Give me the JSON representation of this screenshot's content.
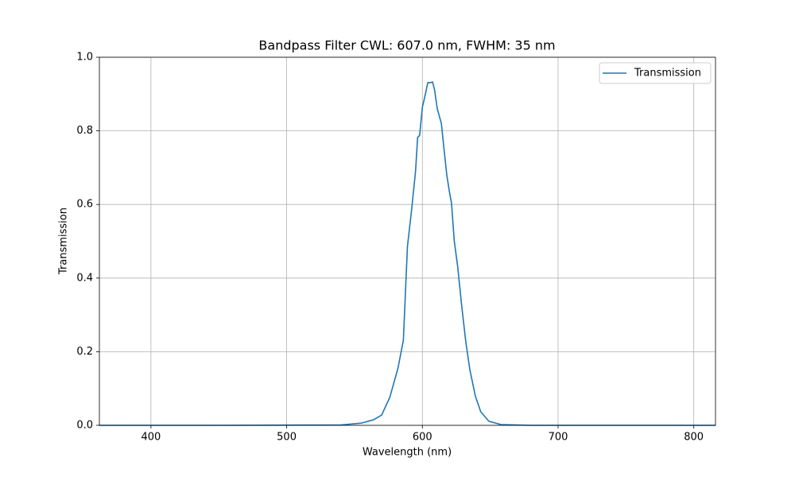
{
  "chart_data": {
    "type": "line",
    "title": "Bandpass Filter CWL: 607.0 nm, FWHM: 35 nm",
    "x_label": "Wavelength (nm)",
    "y_label": "Transmission",
    "x": [
      362,
      450,
      540,
      555,
      564,
      570,
      576,
      582,
      586,
      589,
      592,
      595,
      596.5,
      598,
      600,
      602,
      604,
      606,
      607.5,
      609,
      611,
      614,
      616,
      618,
      620,
      621.5,
      623.5,
      626,
      629,
      632,
      635,
      639,
      643,
      649,
      658,
      680,
      816
    ],
    "series": [
      {
        "name": "Transmission",
        "color": "#1f77b4",
        "values": [
          0,
          0,
          0.001,
          0.006,
          0.015,
          0.028,
          0.076,
          0.155,
          0.231,
          0.486,
          0.583,
          0.691,
          0.782,
          0.788,
          0.864,
          0.896,
          0.931,
          0.931,
          0.933,
          0.911,
          0.86,
          0.82,
          0.749,
          0.68,
          0.633,
          0.603,
          0.501,
          0.432,
          0.324,
          0.227,
          0.151,
          0.08,
          0.037,
          0.011,
          0.002,
          0,
          0
        ]
      }
    ],
    "xlim": [
      362,
      816
    ],
    "ylim": [
      0,
      1
    ],
    "xticks": [
      400,
      500,
      600,
      700,
      800
    ],
    "yticks": [
      {
        "value": 0,
        "label": "0.0"
      },
      0.2,
      0.4,
      0.6,
      0.8,
      {
        "value": 1,
        "label": "1.0"
      }
    ],
    "grid": true,
    "legend": "upper right"
  }
}
